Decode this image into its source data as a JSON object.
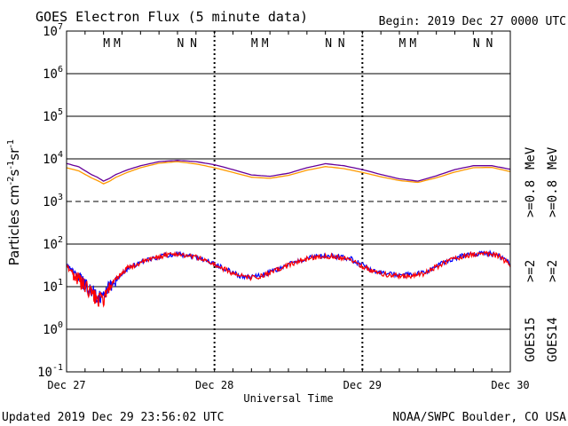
{
  "header": {
    "title": "GOES Electron Flux (5 minute data)",
    "begin": "Begin: 2019 Dec 27 0000 UTC"
  },
  "footer": {
    "updated": "Updated 2019 Dec 29 23:56:02 UTC",
    "credit": "NOAA/SWPC Boulder, CO USA"
  },
  "chart_data": {
    "type": "line",
    "title": "GOES Electron Flux (5 minute data)",
    "xlabel": "Universal Time",
    "ylabel_parts": [
      "Particles cm",
      "-2",
      "s",
      "-1",
      "sr",
      "-1"
    ],
    "yscale": "log",
    "ylim": [
      0.1,
      10000000
    ],
    "xlim": [
      0,
      72
    ],
    "x_unit": "hours since 2019 Dec 27 0000 UTC",
    "x_ticks": [
      {
        "x": 0,
        "label": "Dec 27"
      },
      {
        "x": 24,
        "label": "Dec 28"
      },
      {
        "x": 48,
        "label": "Dec 29"
      },
      {
        "x": 72,
        "label": "Dec 30"
      }
    ],
    "y_ticks": [
      {
        "base": "10",
        "exp": "7"
      },
      {
        "base": "10",
        "exp": "6"
      },
      {
        "base": "10",
        "exp": "5"
      },
      {
        "base": "10",
        "exp": "4"
      },
      {
        "base": "10",
        "exp": "3"
      },
      {
        "base": "10",
        "exp": "2"
      },
      {
        "base": "10",
        "exp": "1"
      },
      {
        "base": "10",
        "exp": "0"
      },
      {
        "base": "10",
        "exp": "-1"
      }
    ],
    "threshold_line": 1000,
    "grid": true,
    "markers": [
      {
        "x": 6.5,
        "label": "M",
        "color": "#ff0000"
      },
      {
        "x": 8.2,
        "label": "M",
        "color": "#0000ff"
      },
      {
        "x": 18.5,
        "label": "N",
        "color": "#ff0000"
      },
      {
        "x": 20.6,
        "label": "N",
        "color": "#0000ff"
      },
      {
        "x": 30.5,
        "label": "M",
        "color": "#ff0000"
      },
      {
        "x": 32.2,
        "label": "M",
        "color": "#0000ff"
      },
      {
        "x": 42.5,
        "label": "N",
        "color": "#ff0000"
      },
      {
        "x": 44.6,
        "label": "N",
        "color": "#0000ff"
      },
      {
        "x": 54.5,
        "label": "M",
        "color": "#ff0000"
      },
      {
        "x": 56.2,
        "label": "M",
        "color": "#0000ff"
      },
      {
        "x": 66.5,
        "label": "N",
        "color": "#ff0000"
      },
      {
        "x": 68.6,
        "label": "N",
        "color": "#0000ff"
      }
    ],
    "series": [
      {
        "name": "GOES15 >=0.8 MeV",
        "color": "#660099",
        "x": [
          0,
          2,
          4,
          5,
          6,
          7,
          8,
          10,
          12,
          15,
          18,
          21,
          24,
          27,
          30,
          33,
          36,
          39,
          42,
          45,
          48,
          51,
          54,
          57,
          60,
          63,
          66,
          69,
          72
        ],
        "y": [
          7800,
          6500,
          4300,
          3700,
          3000,
          3500,
          4300,
          5600,
          6900,
          8600,
          9200,
          8600,
          7300,
          5600,
          4200,
          3900,
          4600,
          6200,
          7700,
          6900,
          5600,
          4300,
          3400,
          3000,
          4000,
          5600,
          6900,
          6900,
          5700
        ]
      },
      {
        "name": "GOES14 >=0.8 MeV",
        "color": "#ff9900",
        "x": [
          0,
          2,
          4,
          5,
          6,
          7,
          8,
          10,
          12,
          15,
          18,
          21,
          24,
          27,
          30,
          33,
          36,
          39,
          42,
          45,
          48,
          51,
          54,
          57,
          60,
          63,
          66,
          69,
          72
        ],
        "y": [
          6200,
          5200,
          3600,
          3100,
          2600,
          3000,
          3700,
          4900,
          6200,
          7900,
          8600,
          7600,
          6200,
          4800,
          3700,
          3500,
          4100,
          5400,
          6600,
          5900,
          4800,
          3800,
          3100,
          2800,
          3600,
          4900,
          6200,
          6300,
          5000
        ]
      },
      {
        "name": "GOES15 >=2 MeV",
        "color": "#0000ff",
        "x": [
          0,
          1,
          2,
          3,
          4,
          5,
          6,
          7,
          8,
          9,
          10,
          12,
          14,
          16,
          18,
          20,
          22,
          24,
          26,
          28,
          30,
          32,
          34,
          36,
          38,
          40,
          42,
          44,
          46,
          48,
          50,
          52,
          54,
          56,
          58,
          60,
          62,
          64,
          66,
          68,
          70,
          72
        ],
        "y": [
          32,
          24,
          15,
          11,
          8,
          6,
          6,
          10,
          14,
          20,
          28,
          36,
          46,
          55,
          60,
          54,
          46,
          34,
          25,
          18,
          17,
          19,
          25,
          33,
          42,
          50,
          53,
          51,
          46,
          32,
          23,
          20,
          19,
          19,
          21,
          30,
          42,
          52,
          58,
          62,
          55,
          34
        ]
      },
      {
        "name": "GOES14 >=2 MeV",
        "color": "#ff0000",
        "x": [
          0,
          1,
          2,
          3,
          4,
          5,
          6,
          7,
          8,
          9,
          10,
          12,
          14,
          16,
          18,
          20,
          22,
          24,
          26,
          28,
          30,
          32,
          34,
          36,
          38,
          40,
          42,
          44,
          46,
          48,
          50,
          52,
          54,
          56,
          58,
          60,
          62,
          64,
          66,
          68,
          70,
          72
        ],
        "y": [
          30,
          22,
          14,
          10,
          7,
          5,
          5,
          9,
          15,
          21,
          28,
          36,
          46,
          55,
          59,
          53,
          45,
          33,
          24,
          18,
          16,
          18,
          24,
          32,
          41,
          49,
          52,
          50,
          45,
          30,
          22,
          19,
          18,
          18,
          20,
          29,
          41,
          51,
          57,
          60,
          54,
          32
        ]
      }
    ],
    "right_labels": [
      {
        "text": "GOES15",
        "color": "#000000"
      },
      {
        "text": "GOES14",
        "color": "#000000"
      },
      {
        "text": ">=2",
        "color": "#0000ff"
      },
      {
        "text": ">=2",
        "color": "#ff0000"
      },
      {
        "text": ">=0.8",
        "color": "#660099"
      },
      {
        "text": ">=0.8",
        "color": "#ff9900"
      },
      {
        "text": "MeV",
        "color": "#000000"
      },
      {
        "text": "MeV",
        "color": "#000000"
      }
    ]
  }
}
